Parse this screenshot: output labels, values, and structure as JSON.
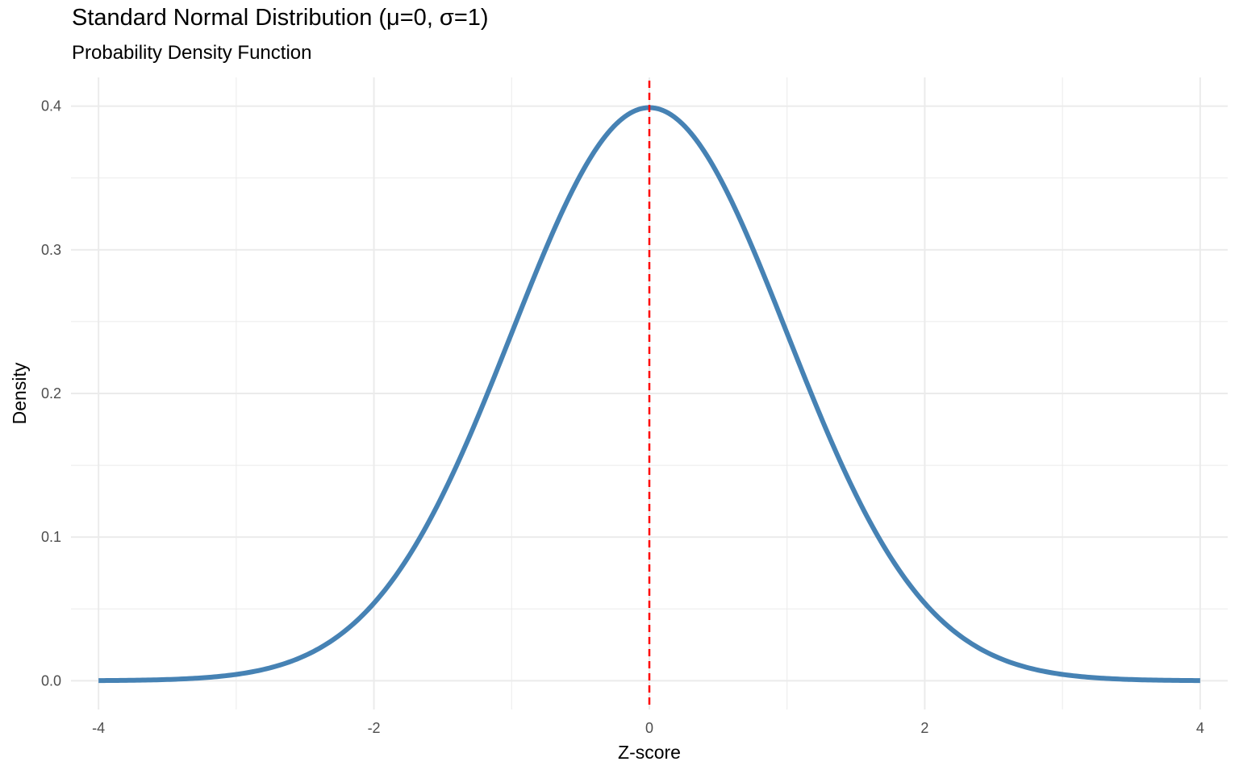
{
  "chart_data": {
    "type": "line",
    "title": "Standard Normal Distribution (μ=0, σ=1)",
    "subtitle": "Probability Density Function",
    "xlabel": "Z-score",
    "ylabel": "Density",
    "xlim": [
      -4.2,
      4.2
    ],
    "ylim": [
      -0.02,
      0.42
    ],
    "x_ticks": [
      -4,
      -2,
      0,
      2,
      4
    ],
    "x_tick_labels": [
      "-4",
      "-2",
      "0",
      "2",
      "4"
    ],
    "y_ticks": [
      0.0,
      0.1,
      0.2,
      0.3,
      0.4
    ],
    "y_tick_labels": [
      "0.0",
      "0.1",
      "0.2",
      "0.3",
      "0.4"
    ],
    "grid": true,
    "legend": "none",
    "series": [
      {
        "color": "#4682b4",
        "x": [
          -4.0,
          -3.5,
          -3.0,
          -2.5,
          -2.0,
          -1.5,
          -1.0,
          -0.5,
          0.0,
          0.5,
          1.0,
          1.5,
          2.0,
          2.5,
          3.0,
          3.5,
          4.0
        ],
        "y": [
          0.0001,
          0.0009,
          0.0044,
          0.0175,
          0.054,
          0.1295,
          0.242,
          0.3521,
          0.3989,
          0.3521,
          0.242,
          0.1295,
          0.054,
          0.0175,
          0.0044,
          0.0009,
          0.0001
        ]
      }
    ],
    "reference_line": {
      "x": 0,
      "color": "#ff0000",
      "style": "dashed"
    }
  }
}
